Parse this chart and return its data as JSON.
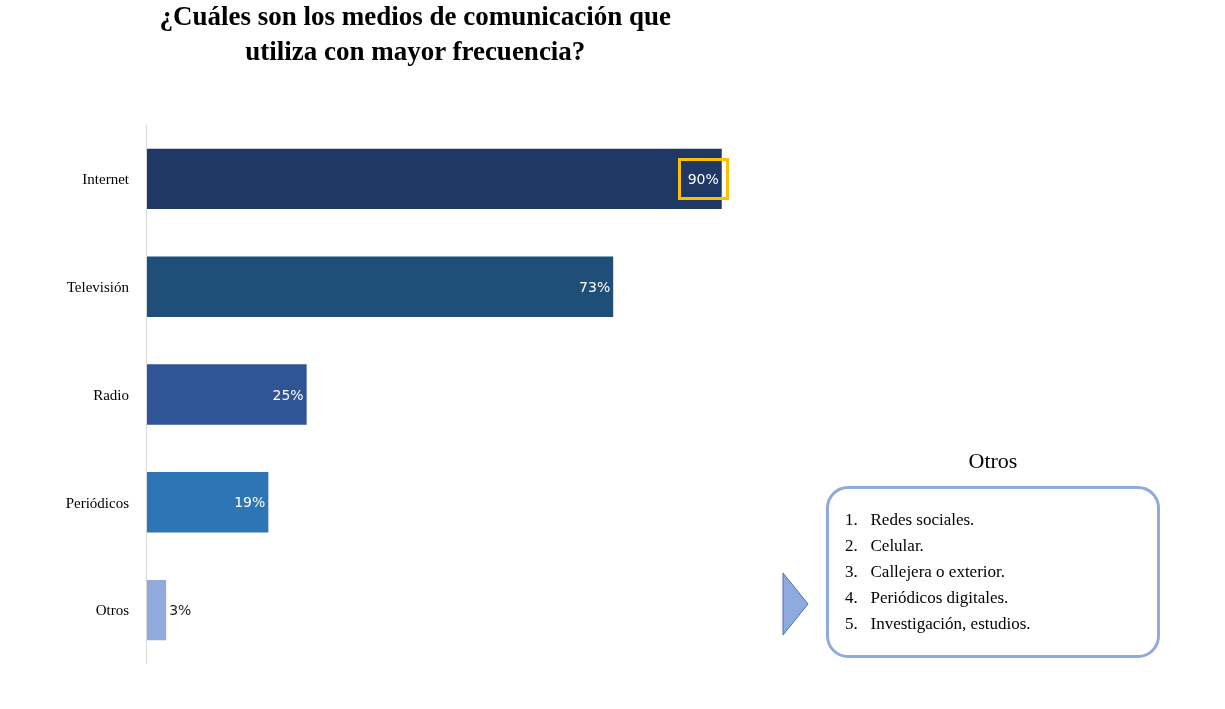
{
  "chart_data": {
    "type": "bar",
    "orientation": "horizontal",
    "title": "¿Cuáles son los medios de comunicación que utiliza con mayor frecuencia?",
    "categories": [
      "Internet",
      "Televisión",
      "Radio",
      "Periódicos",
      "Otros"
    ],
    "values": [
      90,
      73,
      25,
      19,
      3
    ],
    "value_labels": [
      "90%",
      "73%",
      "25%",
      "19%",
      "3%"
    ],
    "colors": [
      "#1f3864",
      "#1f4e79",
      "#2f5597",
      "#2e75b6",
      "#8faadc"
    ],
    "tick_labels": "y",
    "legend": false,
    "annotations": [
      "Otros",
      "1.   Redes sociales.",
      "2.   Celular.",
      "3.   Callejera o exterior.",
      "4.   Periódicos digitales.",
      "5.   Investigación, estudios."
    ]
  }
}
